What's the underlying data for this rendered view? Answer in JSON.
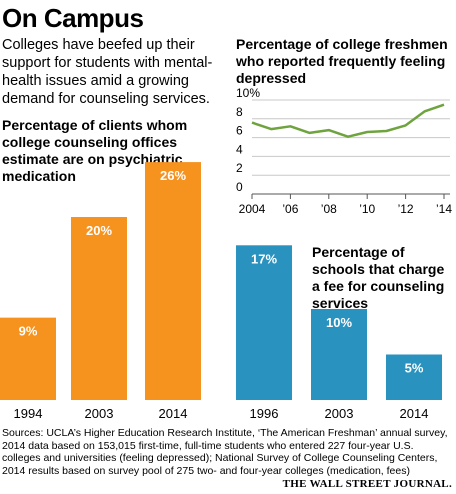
{
  "headline": "On Campus",
  "intro": "Colleges have beefed up their support for students with mental-health issues amid a growing demand for counseling services.",
  "sources": "Sources: UCLA’s Higher Education Research Institute, ‘The American Freshman’ annual survey, 2014 data based on 153,015 first-time, full-time students who entered 227 four-year U.S. colleges and universities (feeling depressed); National Survey of College Counseling Centers, 2014 results based on survey pool of 275 two- and four-year colleges (medication, fees)",
  "credit": "THE WALL STREET JOURNAL.",
  "colors": {
    "orange": "#F6921E",
    "blue": "#2A92BF",
    "green": "#6EA33E",
    "grid": "#c8c8c8"
  },
  "chart_data": [
    {
      "type": "bar",
      "title": "Percentage of clients whom college counseling offices estimate are on psychiatric medication",
      "categories": [
        "1994",
        "2003",
        "2014"
      ],
      "values": [
        9,
        20,
        26
      ],
      "value_labels": [
        "9%",
        "20%",
        "26%"
      ],
      "ylim": [
        0,
        30
      ],
      "color": "#F6921E"
    },
    {
      "type": "line",
      "title": "Percentage of college freshmen who reported frequently feeling depressed",
      "x": [
        2004,
        2005,
        2006,
        2007,
        2008,
        2009,
        2010,
        2011,
        2012,
        2013,
        2014
      ],
      "y": [
        7.6,
        6.9,
        7.2,
        6.5,
        6.8,
        6.1,
        6.6,
        6.7,
        7.3,
        8.8,
        9.5
      ],
      "xticks": [
        2004,
        2006,
        2008,
        2010,
        2012,
        2014
      ],
      "xtick_labels": [
        "2004",
        "’06",
        "’08",
        "’10",
        "’12",
        "’14"
      ],
      "yticks": [
        0,
        2,
        4,
        6,
        8,
        10
      ],
      "ytick_labels": [
        "0",
        "2",
        "4",
        "6",
        "8",
        "10%"
      ],
      "xlim": [
        2004,
        2014
      ],
      "ylim": [
        0,
        10
      ],
      "grid": true,
      "color": "#6EA33E"
    },
    {
      "type": "bar",
      "title": "Percentage of schools that charge a fee for counseling services",
      "categories": [
        "1996",
        "2003",
        "2014"
      ],
      "values": [
        17,
        10,
        5
      ],
      "value_labels": [
        "17%",
        "10%",
        "5%"
      ],
      "ylim": [
        0,
        17.5
      ],
      "color": "#2A92BF"
    }
  ]
}
